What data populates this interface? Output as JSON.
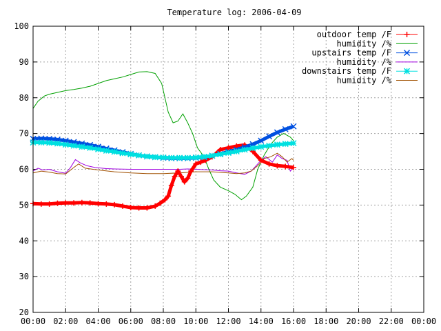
{
  "chart_data": {
    "type": "line",
    "title": "Temperature log: 2006-04-09",
    "xlabel": "",
    "ylabel": "",
    "x_ticks": [
      "00:00",
      "02:00",
      "04:00",
      "06:00",
      "08:00",
      "10:00",
      "12:00",
      "14:00",
      "16:00",
      "18:00",
      "20:00",
      "22:00",
      "00:00"
    ],
    "x_range_hours": [
      0,
      24
    ],
    "y_ticks": [
      20,
      30,
      40,
      50,
      60,
      70,
      80,
      90,
      100
    ],
    "ylim": [
      20,
      100
    ],
    "grid": true,
    "legend_position": "top-right",
    "series": [
      {
        "name": "outdoor temp /F",
        "color": "#ff0000",
        "marker": "plus",
        "points": [
          [
            0,
            50.4
          ],
          [
            0.5,
            50.3
          ],
          [
            1,
            50.3
          ],
          [
            1.5,
            50.5
          ],
          [
            2,
            50.6
          ],
          [
            2.5,
            50.6
          ],
          [
            3,
            50.7
          ],
          [
            3.5,
            50.6
          ],
          [
            4,
            50.4
          ],
          [
            4.5,
            50.3
          ],
          [
            5,
            50.1
          ],
          [
            5.5,
            49.7
          ],
          [
            6,
            49.3
          ],
          [
            6.5,
            49.2
          ],
          [
            7,
            49.2
          ],
          [
            7.5,
            49.7
          ],
          [
            7.8,
            50.5
          ],
          [
            8.1,
            51.5
          ],
          [
            8.3,
            52.5
          ],
          [
            8.5,
            55.5
          ],
          [
            8.7,
            58.0
          ],
          [
            8.9,
            59.5
          ],
          [
            9.1,
            58.0
          ],
          [
            9.3,
            56.5
          ],
          [
            9.5,
            57.5
          ],
          [
            9.7,
            59.5
          ],
          [
            10,
            61.5
          ],
          [
            10.3,
            62.0
          ],
          [
            10.6,
            62.5
          ],
          [
            11,
            63.5
          ],
          [
            11.5,
            65.5
          ],
          [
            12,
            66.0
          ],
          [
            12.5,
            66.5
          ],
          [
            13,
            66.8
          ],
          [
            13.5,
            65.0
          ],
          [
            14,
            62.5
          ],
          [
            14.5,
            61.5
          ],
          [
            15,
            61.0
          ],
          [
            15.5,
            60.8
          ],
          [
            16,
            60.5
          ]
        ]
      },
      {
        "name": "humidity /%",
        "color": "#00a000",
        "marker": "none",
        "points": [
          [
            0,
            77.0
          ],
          [
            0.3,
            79.0
          ],
          [
            0.7,
            80.5
          ],
          [
            1,
            81.0
          ],
          [
            1.5,
            81.5
          ],
          [
            2,
            82.0
          ],
          [
            2.5,
            82.3
          ],
          [
            3,
            82.7
          ],
          [
            3.5,
            83.2
          ],
          [
            4,
            84.0
          ],
          [
            4.5,
            84.8
          ],
          [
            5,
            85.3
          ],
          [
            5.5,
            85.8
          ],
          [
            6,
            86.5
          ],
          [
            6.5,
            87.2
          ],
          [
            7,
            87.3
          ],
          [
            7.5,
            86.8
          ],
          [
            7.9,
            84.0
          ],
          [
            8.1,
            80.0
          ],
          [
            8.3,
            76.0
          ],
          [
            8.6,
            73.0
          ],
          [
            8.9,
            73.5
          ],
          [
            9.2,
            75.5
          ],
          [
            9.5,
            73.0
          ],
          [
            9.8,
            70.0
          ],
          [
            10.1,
            66.0
          ],
          [
            10.5,
            63.5
          ],
          [
            10.8,
            60.0
          ],
          [
            11.1,
            57.0
          ],
          [
            11.5,
            55.0
          ],
          [
            12,
            54.0
          ],
          [
            12.4,
            53.0
          ],
          [
            12.8,
            51.5
          ],
          [
            13.1,
            52.5
          ],
          [
            13.5,
            55.0
          ],
          [
            13.8,
            60.0
          ],
          [
            14.2,
            64.0
          ],
          [
            14.6,
            67.0
          ],
          [
            15,
            69.0
          ],
          [
            15.4,
            70.0
          ],
          [
            15.8,
            69.0
          ],
          [
            16,
            68.0
          ]
        ]
      },
      {
        "name": "upstairs temp /F",
        "color": "#0050e0",
        "marker": "cross",
        "points": [
          [
            0,
            68.5
          ],
          [
            0.5,
            68.6
          ],
          [
            1,
            68.5
          ],
          [
            1.5,
            68.3
          ],
          [
            2,
            68.0
          ],
          [
            2.5,
            67.6
          ],
          [
            3,
            67.2
          ],
          [
            3.5,
            66.8
          ],
          [
            4,
            66.3
          ],
          [
            4.5,
            65.8
          ],
          [
            5,
            65.3
          ],
          [
            5.5,
            64.8
          ],
          [
            6,
            64.3
          ],
          [
            6.5,
            63.9
          ],
          [
            7,
            63.6
          ],
          [
            7.5,
            63.4
          ],
          [
            8,
            63.2
          ],
          [
            8.5,
            63.1
          ],
          [
            9,
            63.1
          ],
          [
            9.5,
            63.1
          ],
          [
            10,
            63.2
          ],
          [
            10.5,
            63.4
          ],
          [
            11,
            63.8
          ],
          [
            11.5,
            64.3
          ],
          [
            12,
            64.9
          ],
          [
            12.5,
            65.5
          ],
          [
            13,
            66.2
          ],
          [
            13.5,
            67.0
          ],
          [
            14,
            68.0
          ],
          [
            14.5,
            69.2
          ],
          [
            15,
            70.3
          ],
          [
            15.5,
            71.2
          ],
          [
            16,
            72.0
          ]
        ]
      },
      {
        "name": "humidity /%",
        "color": "#a000e0",
        "marker": "none",
        "points": [
          [
            0,
            59.5
          ],
          [
            0.3,
            60.3
          ],
          [
            0.6,
            59.8
          ],
          [
            1,
            60.0
          ],
          [
            1.5,
            59.3
          ],
          [
            2,
            58.9
          ],
          [
            2.3,
            60.5
          ],
          [
            2.6,
            62.7
          ],
          [
            2.9,
            61.8
          ],
          [
            3.3,
            61.0
          ],
          [
            3.8,
            60.5
          ],
          [
            4.5,
            60.2
          ],
          [
            5,
            60.1
          ],
          [
            6,
            60.0
          ],
          [
            7,
            60.0
          ],
          [
            8,
            60.0
          ],
          [
            9,
            60.0
          ],
          [
            9.5,
            60.1
          ],
          [
            10,
            60.0
          ],
          [
            11,
            59.8
          ],
          [
            11.5,
            59.6
          ],
          [
            12,
            59.5
          ],
          [
            12.5,
            59.0
          ],
          [
            13,
            58.6
          ],
          [
            13.4,
            59.5
          ],
          [
            13.7,
            61.0
          ],
          [
            14,
            62.5
          ],
          [
            14.3,
            63.5
          ],
          [
            14.7,
            62.0
          ],
          [
            15,
            64.0
          ],
          [
            15.3,
            63.0
          ],
          [
            15.6,
            62.5
          ],
          [
            15.8,
            59.5
          ],
          [
            16,
            60.5
          ]
        ]
      },
      {
        "name": "downstairs temp /F",
        "color": "#00e0e0",
        "marker": "star",
        "points": [
          [
            0,
            67.5
          ],
          [
            0.5,
            67.5
          ],
          [
            1,
            67.4
          ],
          [
            1.5,
            67.2
          ],
          [
            2,
            66.9
          ],
          [
            2.5,
            66.6
          ],
          [
            3,
            66.3
          ],
          [
            3.5,
            66.0
          ],
          [
            4,
            65.6
          ],
          [
            4.5,
            65.2
          ],
          [
            5,
            64.9
          ],
          [
            5.5,
            64.5
          ],
          [
            6,
            64.2
          ],
          [
            6.5,
            63.9
          ],
          [
            7,
            63.6
          ],
          [
            7.5,
            63.4
          ],
          [
            8,
            63.3
          ],
          [
            8.5,
            63.2
          ],
          [
            9,
            63.2
          ],
          [
            9.5,
            63.2
          ],
          [
            10,
            63.3
          ],
          [
            10.5,
            63.5
          ],
          [
            11,
            63.8
          ],
          [
            11.5,
            64.2
          ],
          [
            12,
            64.6
          ],
          [
            12.5,
            65.0
          ],
          [
            13,
            65.5
          ],
          [
            13.5,
            65.9
          ],
          [
            14,
            66.3
          ],
          [
            14.5,
            66.6
          ],
          [
            15,
            66.9
          ],
          [
            15.5,
            67.1
          ],
          [
            16,
            67.3
          ]
        ]
      },
      {
        "name": "humidity /%",
        "color": "#a05000",
        "marker": "none",
        "points": [
          [
            0,
            59.0
          ],
          [
            0.5,
            59.5
          ],
          [
            1,
            59.2
          ],
          [
            1.5,
            58.8
          ],
          [
            2,
            58.7
          ],
          [
            2.5,
            60.5
          ],
          [
            2.8,
            61.5
          ],
          [
            3.2,
            60.3
          ],
          [
            4,
            59.8
          ],
          [
            5,
            59.3
          ],
          [
            6,
            59.0
          ],
          [
            7,
            58.8
          ],
          [
            8,
            58.8
          ],
          [
            9,
            59.0
          ],
          [
            10,
            59.3
          ],
          [
            11,
            59.3
          ],
          [
            12,
            59.0
          ],
          [
            12.5,
            58.8
          ],
          [
            13,
            59.0
          ],
          [
            13.4,
            59.5
          ],
          [
            13.8,
            61.0
          ],
          [
            14.2,
            63.0
          ],
          [
            14.6,
            63.5
          ],
          [
            15,
            64.5
          ],
          [
            15.3,
            63.5
          ],
          [
            15.6,
            62.0
          ],
          [
            15.9,
            63.0
          ],
          [
            16,
            62.5
          ]
        ]
      }
    ]
  }
}
